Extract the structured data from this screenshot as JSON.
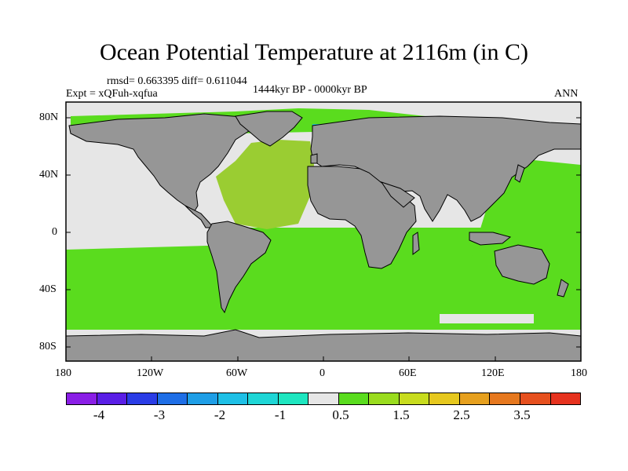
{
  "title": "Ocean Potential Temperature at 2116m (in C)",
  "stats": "rmsd= 0.663395 diff= 0.611044",
  "experiment": "Expt = xQFuh-xqfua",
  "period": "1444kyr BP - 0000kyr BP",
  "season": "ANN",
  "lat_ticks": [
    "80N",
    "40N",
    "0",
    "40S",
    "80S"
  ],
  "lon_ticks": [
    "180",
    "120W",
    "60W",
    "0",
    "60E",
    "120E",
    "180"
  ],
  "colorbar": {
    "colors": [
      "#8a1ee6",
      "#5a1ee6",
      "#2a3ce6",
      "#1e6ee6",
      "#1e9ee6",
      "#1ec0e6",
      "#1ed6d6",
      "#1ee6c0",
      "#e6e6e6",
      "#5adc1e",
      "#9adc1e",
      "#c8dc1e",
      "#e6c81e",
      "#e6a01e",
      "#e6781e",
      "#e6501e",
      "#e6321e"
    ],
    "labels": [
      "-4",
      "-3",
      "-2",
      "-1",
      "0.5",
      "1.5",
      "2.5",
      "3.5"
    ]
  },
  "colors": {
    "land": "#969696",
    "near_zero": "#e6e6e6",
    "warm_0_5_1_0": "#5adc1e",
    "warm_1_0_1_5": "#9acd32",
    "cool_cyan": "#1ec8c8"
  }
}
